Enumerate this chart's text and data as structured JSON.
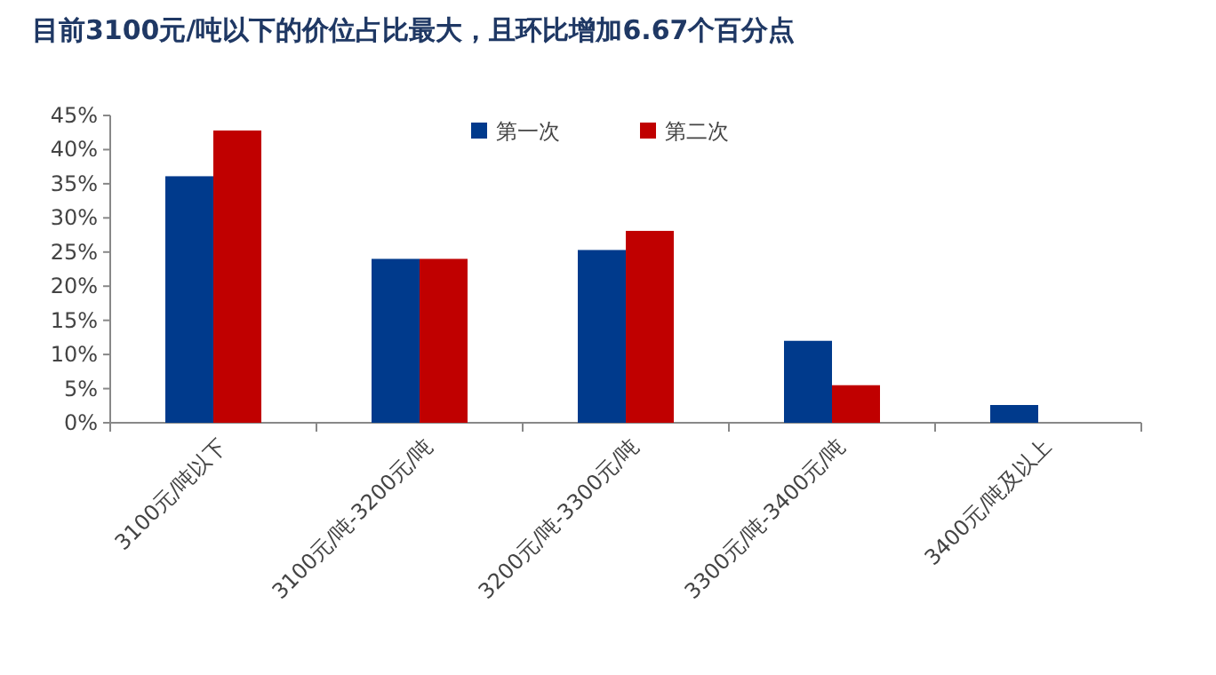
{
  "chart_data": {
    "type": "bar",
    "title": "目前3100元/吨以下的价位占比最大，且环比增加6.67个百分点",
    "categories": [
      "3100元/吨以下",
      "3100元/吨-3200元/吨",
      "3200元/吨-3300元/吨",
      "3300元/吨-3400元/吨",
      "3400元/吨及以上"
    ],
    "series": [
      {
        "name": "第一次",
        "color": "#003a8c",
        "values": [
          36.1,
          24.0,
          25.3,
          12.0,
          2.6
        ]
      },
      {
        "name": "第二次",
        "color": "#c00000",
        "values": [
          42.8,
          24.0,
          28.1,
          5.5,
          null
        ]
      }
    ],
    "ylim": [
      0,
      45
    ],
    "yticks": [
      {
        "value": 0,
        "label": "0%"
      },
      {
        "value": 5,
        "label": "5%"
      },
      {
        "value": 10,
        "label": "10%"
      },
      {
        "value": 15,
        "label": "15%"
      },
      {
        "value": 20,
        "label": "20%"
      },
      {
        "value": 25,
        "label": "25%"
      },
      {
        "value": 30,
        "label": "30%"
      },
      {
        "value": 35,
        "label": "35%"
      },
      {
        "value": 40,
        "label": "40%"
      },
      {
        "value": 45,
        "label": "45%"
      }
    ],
    "legend": "top"
  }
}
